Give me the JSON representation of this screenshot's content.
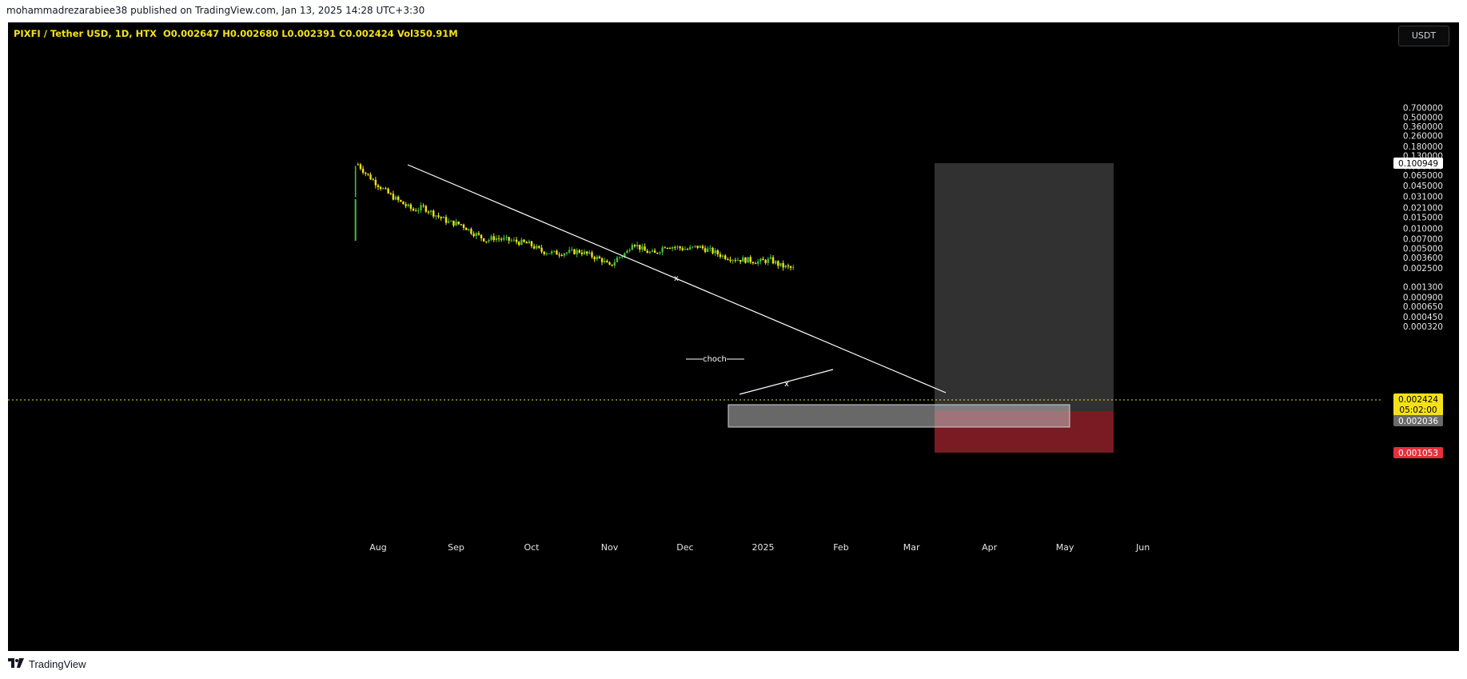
{
  "header": {
    "published_text": "mohammadrezarabiee38 published on TradingView.com, Jan 13, 2025 14:28 UTC+3:30"
  },
  "legend": {
    "symbol": "PIXFI / Tether USD, 1D, HTX",
    "open": "O0.002647",
    "high": "H0.002680",
    "low": "L0.002391",
    "close": "C0.002424",
    "volume": "Vol350.91M"
  },
  "currency_button": {
    "label": "USDT"
  },
  "footer": {
    "brand": "TradingView",
    "logo_icon": "tradingview-logo-icon"
  },
  "colors": {
    "up": "#3fbf3f",
    "down": "#f5e216",
    "target_zone": "#3a3a3a",
    "stop_zone": "#7a1a22",
    "demand_zone": "#9a9a9a",
    "trendline": "#ffffff",
    "close_line": "#f5e216"
  },
  "chart_data": {
    "type": "candlestick",
    "y_scale": "log",
    "ylim": [
      0.0003,
      0.72
    ],
    "y_ticks": [
      "0.700000",
      "0.500000",
      "0.360000",
      "0.260000",
      "0.180000",
      "0.130000",
      "0.090000",
      "0.065000",
      "0.045000",
      "0.031000",
      "0.021000",
      "0.015000",
      "0.010000",
      "0.007000",
      "0.005000",
      "0.003600",
      "0.002500",
      "0.001300",
      "0.000900",
      "0.000650",
      "0.000450",
      "0.000320"
    ],
    "x_ticks": [
      "Aug",
      "Sep",
      "Oct",
      "Nov",
      "Dec",
      "2025",
      "Feb",
      "Mar",
      "Apr",
      "May",
      "Jun"
    ],
    "price_labels": [
      {
        "value": "0.100949",
        "kind": "target"
      },
      {
        "value": "0.002424",
        "kind": "last",
        "countdown": "05:02:00"
      },
      {
        "value": "0.002036",
        "kind": "entry"
      },
      {
        "value": "0.001053",
        "kind": "stop"
      }
    ],
    "annotations": [
      {
        "text": "choch"
      },
      {
        "text": "x"
      },
      {
        "text": "x"
      }
    ],
    "path_points": [
      [
        "2024-07-23",
        0.0065
      ],
      [
        "2024-07-24",
        0.095
      ],
      [
        "2024-07-27",
        0.07
      ],
      [
        "2024-07-31",
        0.05
      ],
      [
        "2024-08-05",
        0.034
      ],
      [
        "2024-08-10",
        0.025
      ],
      [
        "2024-08-15",
        0.019
      ],
      [
        "2024-08-19",
        0.021
      ],
      [
        "2024-08-24",
        0.016
      ],
      [
        "2024-08-29",
        0.0125
      ],
      [
        "2024-09-03",
        0.0115
      ],
      [
        "2024-09-08",
        0.0085
      ],
      [
        "2024-09-13",
        0.0066
      ],
      [
        "2024-09-16",
        0.0072
      ],
      [
        "2024-09-20",
        0.0068
      ],
      [
        "2024-09-25",
        0.0063
      ],
      [
        "2024-09-30",
        0.0058
      ],
      [
        "2024-10-05",
        0.0045
      ],
      [
        "2024-10-10",
        0.0042
      ],
      [
        "2024-10-15",
        0.0043
      ],
      [
        "2024-10-20",
        0.0045
      ],
      [
        "2024-10-25",
        0.0038
      ],
      [
        "2024-10-29",
        0.0033
      ],
      [
        "2024-11-01",
        0.0026
      ],
      [
        "2024-11-04",
        0.0035
      ],
      [
        "2024-11-08",
        0.0044
      ],
      [
        "2024-11-10",
        0.0062
      ],
      [
        "2024-11-15",
        0.0045
      ],
      [
        "2024-11-19",
        0.0041
      ],
      [
        "2024-11-23",
        0.0055
      ],
      [
        "2024-11-27",
        0.0052
      ],
      [
        "2024-12-02",
        0.0048
      ],
      [
        "2024-12-06",
        0.0053
      ],
      [
        "2024-12-11",
        0.0046
      ],
      [
        "2024-12-16",
        0.0038
      ],
      [
        "2024-12-21",
        0.0034
      ],
      [
        "2024-12-26",
        0.0033
      ],
      [
        "2024-12-30",
        0.0031
      ],
      [
        "2025-01-04",
        0.0033
      ],
      [
        "2025-01-08",
        0.0027
      ],
      [
        "2025-01-13",
        0.002424
      ]
    ]
  }
}
